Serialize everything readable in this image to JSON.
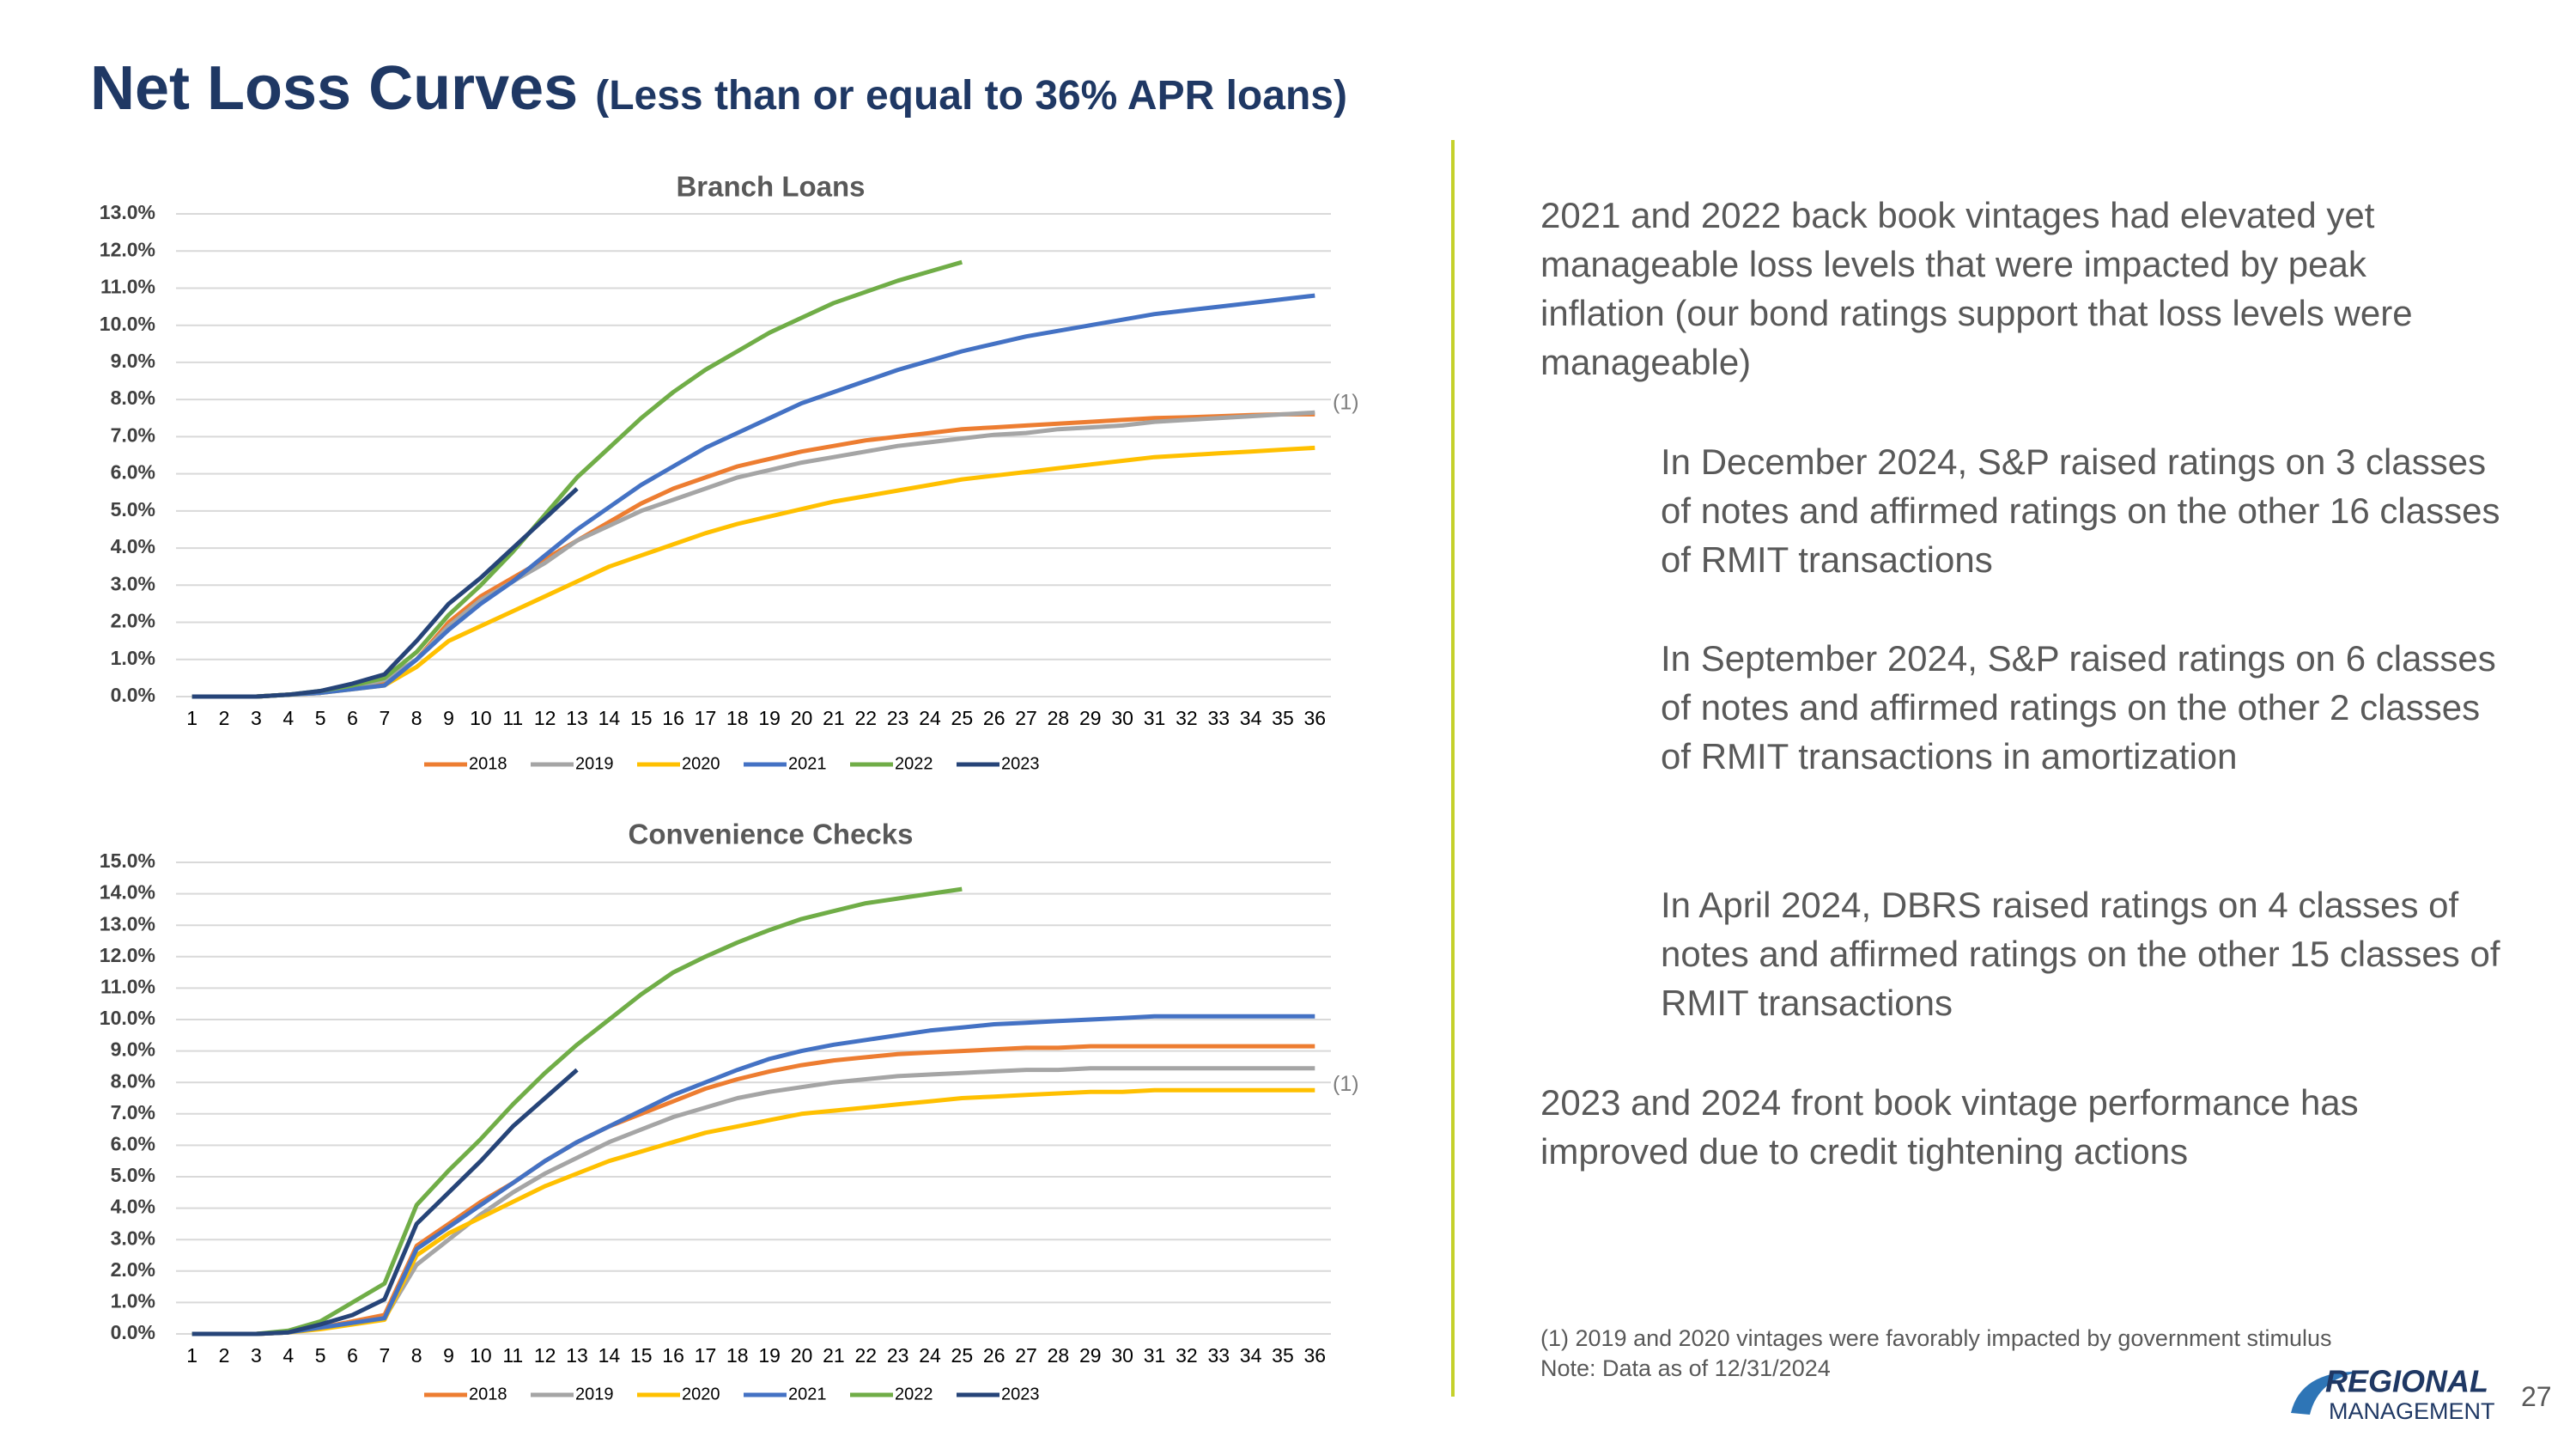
{
  "title": "Net Loss Curves",
  "subtitle": "(Less than or equal to 36% APR loans)",
  "chart_data": [
    {
      "type": "line",
      "title": "Branch Loans",
      "annotation": "(1)",
      "grid": true,
      "legend": "bottom",
      "categories": [
        "1",
        "2",
        "3",
        "4",
        "5",
        "6",
        "7",
        "8",
        "9",
        "10",
        "11",
        "12",
        "13",
        "14",
        "15",
        "16",
        "17",
        "18",
        "19",
        "20",
        "21",
        "22",
        "23",
        "24",
        "25",
        "26",
        "27",
        "28",
        "29",
        "30",
        "31",
        "32",
        "33",
        "34",
        "35",
        "36"
      ],
      "ylim": [
        0,
        13
      ],
      "yticks": [
        {
          "value": 0,
          "label": "0.0%"
        },
        {
          "value": 1,
          "label": "1.0%"
        },
        {
          "value": 2,
          "label": "2.0%"
        },
        {
          "value": 3,
          "label": "3.0%"
        },
        {
          "value": 4,
          "label": "4.0%"
        },
        {
          "value": 5,
          "label": "5.0%"
        },
        {
          "value": 6,
          "label": "6.0%"
        },
        {
          "value": 7,
          "label": "7.0%"
        },
        {
          "value": 8,
          "label": "8.0%"
        },
        {
          "value": 9,
          "label": "9.0%"
        },
        {
          "value": 10,
          "label": "10.0%"
        },
        {
          "value": 11,
          "label": "11.0%"
        },
        {
          "value": 12,
          "label": "12.0%"
        },
        {
          "value": 13,
          "label": "13.0%"
        }
      ],
      "series": [
        {
          "name": "2018",
          "color": "#ed7d31",
          "values": [
            0,
            0,
            0,
            0.05,
            0.1,
            0.25,
            0.4,
            1.0,
            2.0,
            2.7,
            3.2,
            3.7,
            4.2,
            4.7,
            5.2,
            5.6,
            5.9,
            6.2,
            6.4,
            6.6,
            6.75,
            6.9,
            7.0,
            7.1,
            7.2,
            7.25,
            7.3,
            7.35,
            7.4,
            7.45,
            7.5,
            7.52,
            7.55,
            7.58,
            7.6,
            7.6
          ]
        },
        {
          "name": "2019",
          "color": "#a5a5a5",
          "values": [
            0,
            0,
            0,
            0.05,
            0.1,
            0.25,
            0.45,
            1.0,
            1.9,
            2.6,
            3.1,
            3.6,
            4.2,
            4.6,
            5.0,
            5.3,
            5.6,
            5.9,
            6.1,
            6.3,
            6.45,
            6.6,
            6.75,
            6.85,
            6.95,
            7.05,
            7.1,
            7.2,
            7.25,
            7.3,
            7.4,
            7.45,
            7.5,
            7.55,
            7.6,
            7.65
          ]
        },
        {
          "name": "2020",
          "color": "#ffc000",
          "values": [
            0,
            0,
            0,
            0.05,
            0.1,
            0.2,
            0.3,
            0.8,
            1.5,
            1.9,
            2.3,
            2.7,
            3.1,
            3.5,
            3.8,
            4.1,
            4.4,
            4.65,
            4.85,
            5.05,
            5.25,
            5.4,
            5.55,
            5.7,
            5.85,
            5.95,
            6.05,
            6.15,
            6.25,
            6.35,
            6.45,
            6.5,
            6.55,
            6.6,
            6.65,
            6.7
          ]
        },
        {
          "name": "2021",
          "color": "#4472c4",
          "values": [
            0,
            0,
            0,
            0.05,
            0.1,
            0.2,
            0.3,
            1.0,
            1.8,
            2.5,
            3.1,
            3.8,
            4.5,
            5.1,
            5.7,
            6.2,
            6.7,
            7.1,
            7.5,
            7.9,
            8.2,
            8.5,
            8.8,
            9.05,
            9.3,
            9.5,
            9.7,
            9.85,
            10.0,
            10.15,
            10.3,
            10.4,
            10.5,
            10.6,
            10.7,
            10.8
          ]
        },
        {
          "name": "2022",
          "color": "#70ad47",
          "values": [
            0,
            0,
            0,
            0.05,
            0.15,
            0.3,
            0.5,
            1.2,
            2.2,
            3.0,
            3.9,
            4.9,
            5.9,
            6.7,
            7.5,
            8.2,
            8.8,
            9.3,
            9.8,
            10.2,
            10.6,
            10.9,
            11.2,
            11.45,
            11.7,
            null,
            null,
            null,
            null,
            null,
            null,
            null,
            null,
            null,
            null,
            null
          ]
        },
        {
          "name": "2023",
          "color": "#264478",
          "values": [
            0,
            0,
            0,
            0.05,
            0.15,
            0.35,
            0.6,
            1.5,
            2.5,
            3.2,
            4.0,
            4.8,
            5.6,
            null,
            null,
            null,
            null,
            null,
            null,
            null,
            null,
            null,
            null,
            null,
            null,
            null,
            null,
            null,
            null,
            null,
            null,
            null,
            null,
            null,
            null,
            null
          ]
        }
      ]
    },
    {
      "type": "line",
      "title": "Convenience Checks",
      "annotation": "(1)",
      "grid": true,
      "legend": "bottom",
      "categories": [
        "1",
        "2",
        "3",
        "4",
        "5",
        "6",
        "7",
        "8",
        "9",
        "10",
        "11",
        "12",
        "13",
        "14",
        "15",
        "16",
        "17",
        "18",
        "19",
        "20",
        "21",
        "22",
        "23",
        "24",
        "25",
        "26",
        "27",
        "28",
        "29",
        "30",
        "31",
        "32",
        "33",
        "34",
        "35",
        "36"
      ],
      "ylim": [
        0,
        15
      ],
      "yticks": [
        {
          "value": 0,
          "label": "0.0%"
        },
        {
          "value": 1,
          "label": "1.0%"
        },
        {
          "value": 2,
          "label": "2.0%"
        },
        {
          "value": 3,
          "label": "3.0%"
        },
        {
          "value": 4,
          "label": "4.0%"
        },
        {
          "value": 5,
          "label": "5.0%"
        },
        {
          "value": 6,
          "label": "6.0%"
        },
        {
          "value": 7,
          "label": "7.0%"
        },
        {
          "value": 8,
          "label": "8.0%"
        },
        {
          "value": 9,
          "label": "9.0%"
        },
        {
          "value": 10,
          "label": "10.0%"
        },
        {
          "value": 11,
          "label": "11.0%"
        },
        {
          "value": 12,
          "label": "12.0%"
        },
        {
          "value": 13,
          "label": "13.0%"
        },
        {
          "value": 14,
          "label": "14.0%"
        },
        {
          "value": 15,
          "label": "15.0%"
        }
      ],
      "series": [
        {
          "name": "2018",
          "color": "#ed7d31",
          "values": [
            0,
            0,
            0,
            0.05,
            0.2,
            0.4,
            0.6,
            2.8,
            3.5,
            4.2,
            4.8,
            5.5,
            6.1,
            6.6,
            7.0,
            7.4,
            7.8,
            8.1,
            8.35,
            8.55,
            8.7,
            8.8,
            8.9,
            8.95,
            9.0,
            9.05,
            9.1,
            9.1,
            9.15,
            9.15,
            9.15,
            9.15,
            9.15,
            9.15,
            9.15,
            9.15
          ]
        },
        {
          "name": "2019",
          "color": "#a5a5a5",
          "values": [
            0,
            0,
            0,
            0.05,
            0.2,
            0.35,
            0.5,
            2.2,
            3.0,
            3.8,
            4.5,
            5.1,
            5.6,
            6.1,
            6.5,
            6.9,
            7.2,
            7.5,
            7.7,
            7.85,
            8.0,
            8.1,
            8.2,
            8.25,
            8.3,
            8.35,
            8.4,
            8.4,
            8.45,
            8.45,
            8.45,
            8.45,
            8.45,
            8.45,
            8.45,
            8.45
          ]
        },
        {
          "name": "2020",
          "color": "#ffc000",
          "values": [
            0,
            0,
            0,
            0.05,
            0.15,
            0.3,
            0.45,
            2.5,
            3.2,
            3.7,
            4.2,
            4.7,
            5.1,
            5.5,
            5.8,
            6.1,
            6.4,
            6.6,
            6.8,
            7.0,
            7.1,
            7.2,
            7.3,
            7.4,
            7.5,
            7.55,
            7.6,
            7.65,
            7.7,
            7.7,
            7.75,
            7.75,
            7.75,
            7.75,
            7.75,
            7.75
          ]
        },
        {
          "name": "2021",
          "color": "#4472c4",
          "values": [
            0,
            0,
            0,
            0.05,
            0.2,
            0.35,
            0.5,
            2.7,
            3.4,
            4.1,
            4.8,
            5.5,
            6.1,
            6.6,
            7.1,
            7.6,
            8.0,
            8.4,
            8.75,
            9.0,
            9.2,
            9.35,
            9.5,
            9.65,
            9.75,
            9.85,
            9.9,
            9.95,
            10.0,
            10.05,
            10.1,
            10.1,
            10.1,
            10.1,
            10.1,
            10.1
          ]
        },
        {
          "name": "2022",
          "color": "#70ad47",
          "values": [
            0,
            0,
            0,
            0.1,
            0.4,
            1.0,
            1.6,
            4.1,
            5.2,
            6.2,
            7.3,
            8.3,
            9.2,
            10.0,
            10.8,
            11.5,
            12.0,
            12.45,
            12.85,
            13.2,
            13.45,
            13.7,
            13.85,
            14.0,
            14.15,
            null,
            null,
            null,
            null,
            null,
            null,
            null,
            null,
            null,
            null,
            null
          ]
        },
        {
          "name": "2023",
          "color": "#264478",
          "values": [
            0,
            0,
            0,
            0.05,
            0.3,
            0.6,
            1.1,
            3.5,
            4.5,
            5.5,
            6.6,
            7.5,
            8.4,
            null,
            null,
            null,
            null,
            null,
            null,
            null,
            null,
            null,
            null,
            null,
            null,
            null,
            null,
            null,
            null,
            null,
            null,
            null,
            null,
            null,
            null,
            null
          ]
        }
      ]
    }
  ],
  "paragraphs": [
    "2021 and 2022 back book vintages had elevated yet manageable loss levels that were impacted by peak inflation (our bond ratings support that loss levels were manageable)",
    "In December 2024, S&P raised ratings on 3 classes of notes and affirmed ratings on the other 16 classes of RMIT transactions",
    "In September 2024, S&P raised ratings on 6 classes of notes and affirmed ratings on the other 2 classes of RMIT transactions in amortization",
    "In April 2024, DBRS raised ratings on 4 classes of notes and affirmed ratings on the other 15 classes of RMIT transactions",
    "2023 and 2024 front book vintage performance has improved due to credit tightening actions"
  ],
  "footnotes": [
    "(1)   2019 and 2020 vintages were favorably impacted by government stimulus",
    "Note:  Data as of 12/31/2024"
  ],
  "logo": [
    "REGIONAL",
    "MANAGEMENT"
  ],
  "page_number": "27"
}
